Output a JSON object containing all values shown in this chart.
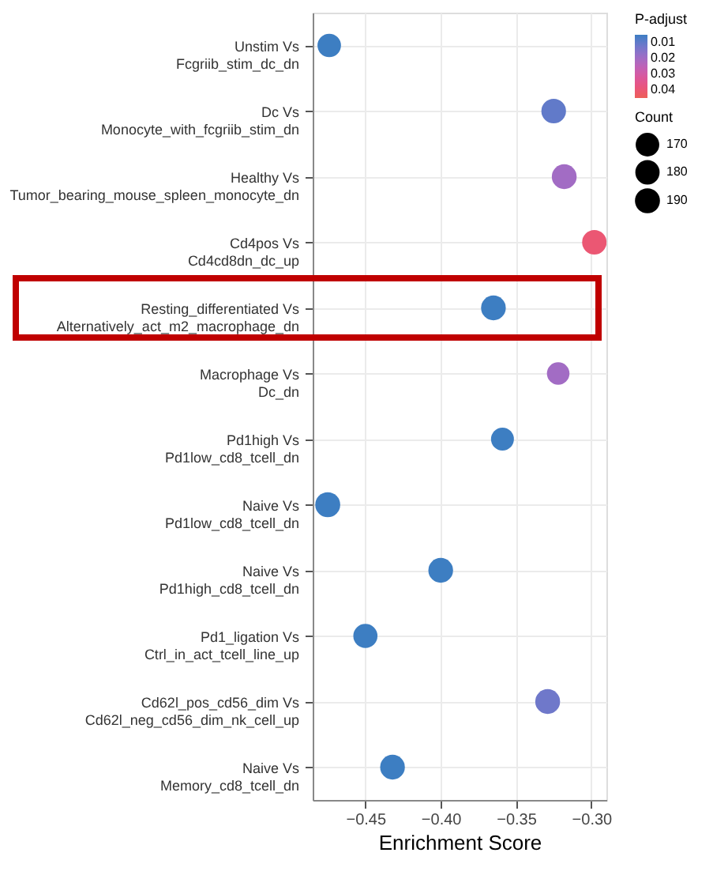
{
  "chart_data": {
    "type": "bubble",
    "categories": [
      "Unstim Vs\nFcgriib_stim_dc_dn",
      "Dc Vs\nMonocyte_with_fcgriib_stim_dn",
      "Healthy Vs\nTumor_bearing_mouse_spleen_monocyte_dn",
      "Cd4pos Vs\nCd4cd8dn_dc_up",
      "Resting_differentiated Vs\nAlternatively_act_m2_macrophage_dn",
      "Macrophage Vs\nDc_dn",
      "Pd1high Vs\nPd1low_cd8_tcell_dn",
      "Naive Vs\nPd1low_cd8_tcell_dn",
      "Naive Vs\nPd1high_cd8_tcell_dn",
      "Pd1_ligation Vs\nCtrl_in_act_tcell_line_up",
      "Cd62l_pos_cd56_dim Vs\nCd62l_neg_cd56_dim_nk_cell_up",
      "Naive Vs\nMemory_cd8_tcell_dn"
    ],
    "values": [
      -0.474,
      -0.325,
      -0.318,
      -0.298,
      -0.365,
      -0.322,
      -0.359,
      -0.475,
      -0.4,
      -0.45,
      -0.329,
      -0.432
    ],
    "sizes": [
      168,
      185,
      188,
      182,
      186,
      155,
      160,
      190,
      186,
      178,
      188,
      186
    ],
    "size_legend": [
      170,
      180,
      190
    ],
    "cvalues": [
      0.005,
      0.01,
      0.02,
      0.04,
      0.005,
      0.02,
      0.005,
      0.005,
      0.005,
      0.005,
      0.012,
      0.005
    ],
    "clim": [
      0.005,
      0.045
    ],
    "cticks": [
      0.01,
      0.02,
      0.03,
      0.04
    ],
    "clabel": "P-adjust",
    "legend_title": "Count",
    "orientation": "horizontal",
    "xlabel": "Enrichment Score",
    "xlim": [
      -0.485,
      -0.29
    ],
    "xticks": [
      {
        "value": -0.45,
        "label": "−0.45"
      },
      {
        "value": -0.4,
        "label": "−0.40"
      },
      {
        "value": -0.35,
        "label": "−0.35"
      },
      {
        "value": -0.3,
        "label": "−0.30"
      }
    ],
    "grid": true
  }
}
